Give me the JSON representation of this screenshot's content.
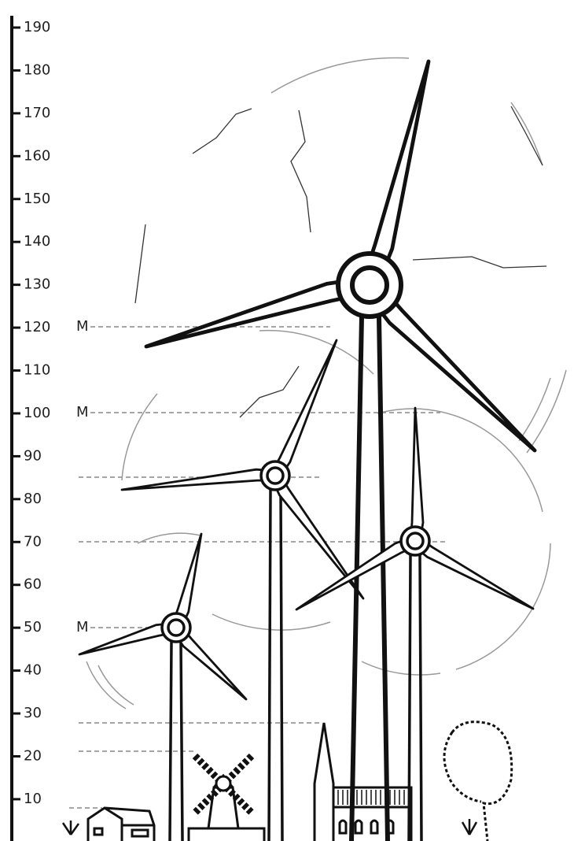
{
  "scale": {
    "ticks": [
      "10",
      "20",
      "30",
      "40",
      "50",
      "60",
      "70",
      "80",
      "90",
      "100",
      "110",
      "120",
      "130",
      "140",
      "150",
      "160",
      "170",
      "180",
      "190"
    ]
  },
  "hub_labels": [
    "M",
    "M",
    "M"
  ]
}
